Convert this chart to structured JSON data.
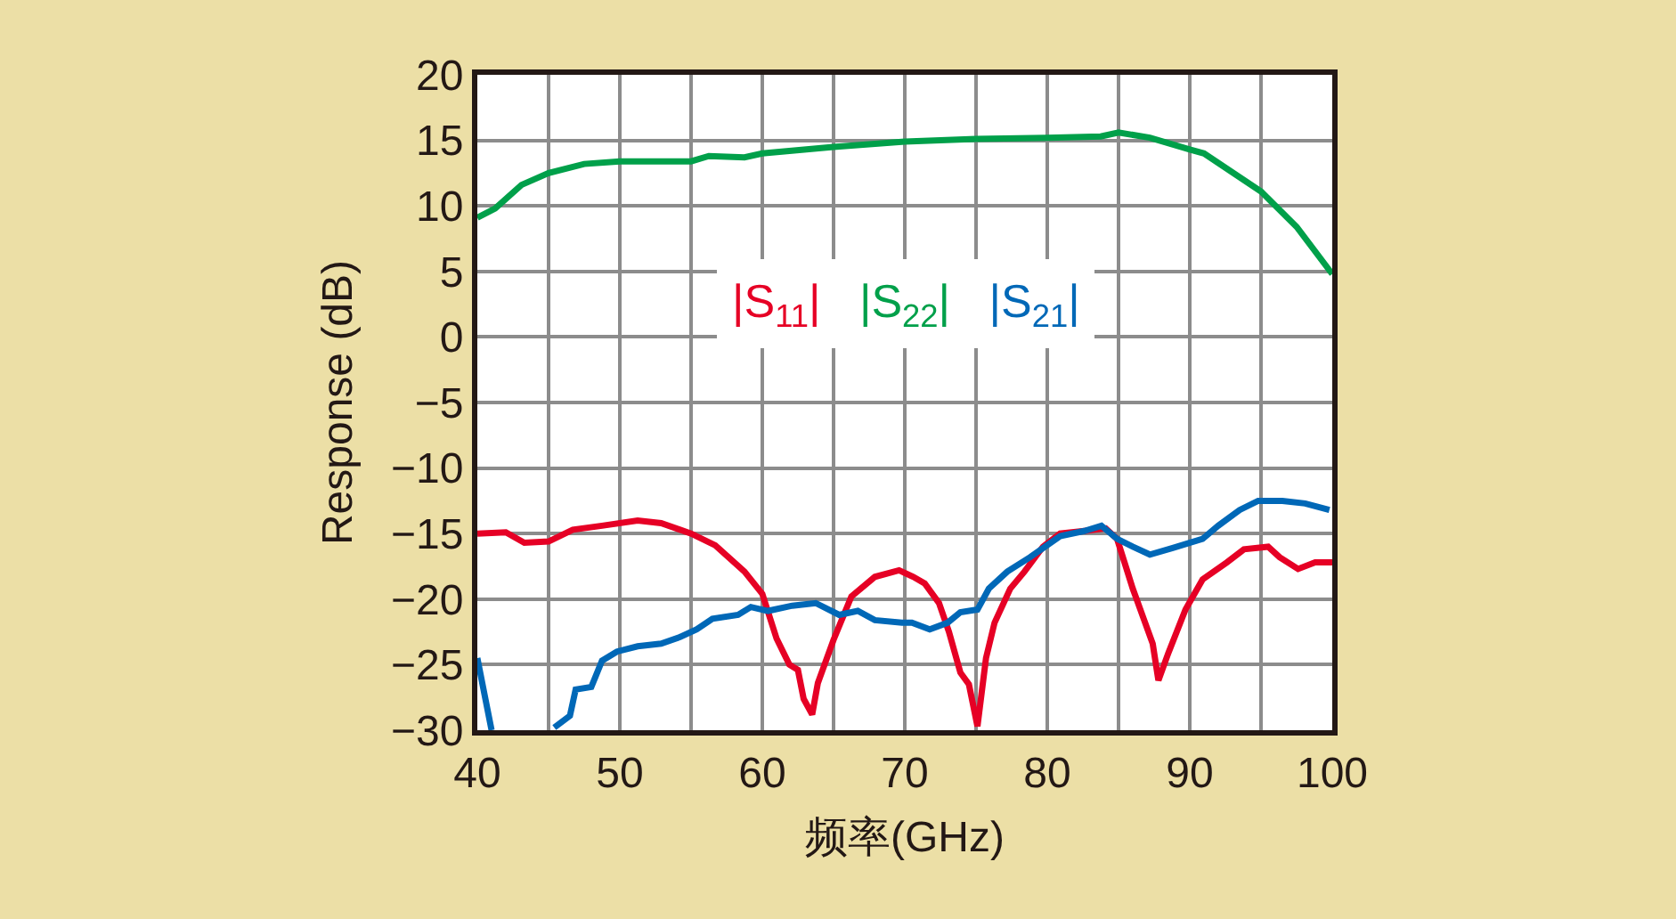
{
  "chart_data": {
    "type": "line",
    "xlabel": "频率(GHz)",
    "ylabel": "Response (dB)",
    "xlim": [
      40,
      100
    ],
    "ylim": [
      -30,
      20
    ],
    "xticks": [
      40,
      {
        "value": 45,
        "label": null
      },
      50,
      {
        "value": 55,
        "label": null
      },
      60,
      {
        "value": 65,
        "label": null
      },
      70,
      {
        "value": 75,
        "label": null
      },
      80,
      {
        "value": 85,
        "label": null
      },
      90,
      {
        "value": 95,
        "label": null
      },
      100
    ],
    "yticks": [
      -30,
      -25,
      -20,
      -15,
      -10,
      -5,
      0,
      5,
      10,
      15,
      20
    ],
    "grid": true,
    "legend": "top",
    "marker": "none",
    "line_style": "solid",
    "series": [
      {
        "name": "|S$_{11}$|",
        "color": "#e60025",
        "x": [
          40,
          42,
          43.3,
          45,
          46.7,
          48.75,
          51.25,
          52.9,
          55,
          56.7,
          58.75,
          60,
          61,
          61.9,
          62.5,
          62.9,
          63.5,
          63.9,
          65,
          66.25,
          67.9,
          69.6,
          70.6,
          71.4,
          72.4,
          73.1,
          73.9,
          74.5,
          75.1,
          75.7,
          76.3,
          77.4,
          78.4,
          79.7,
          80.9,
          82.6,
          84.1,
          84.9,
          86,
          86.8,
          87.4,
          87.8,
          88.5,
          89.7,
          90.9,
          92.6,
          93.8,
          95.5,
          96.3,
          97.6,
          98.8,
          100
        ],
        "values": [
          -15,
          -14.9,
          -15.7,
          -15.6,
          -14.7,
          -14.4,
          -14.0,
          -14.2,
          -15,
          -15.9,
          -17.9,
          -19.6,
          -23,
          -25,
          -25.4,
          -27.6,
          -28.8,
          -26.4,
          -23.1,
          -19.8,
          -18.3,
          -17.8,
          -18.3,
          -18.8,
          -20.3,
          -22.5,
          -25.6,
          -26.5,
          -29.7,
          -24.5,
          -21.8,
          -19.2,
          -17.9,
          -16,
          -15,
          -14.8,
          -14.6,
          -15.4,
          -19.2,
          -21.6,
          -23.4,
          -26.2,
          -24.1,
          -20.8,
          -18.5,
          -17.2,
          -16.2,
          -16,
          -16.8,
          -17.7,
          -17.2,
          -17.2
        ]
      },
      {
        "name": "|S$_{22}$|",
        "color": "#00a04a",
        "x": [
          40,
          41.25,
          43.1,
          45,
          47.5,
          50,
          55,
          56.25,
          58.75,
          60,
          65,
          70,
          75,
          80,
          83.75,
          85,
          87.2,
          90,
          91,
          95,
          97.5,
          100
        ],
        "values": [
          9.1,
          9.8,
          11.6,
          12.5,
          13.2,
          13.4,
          13.4,
          13.8,
          13.7,
          14.0,
          14.5,
          14.9,
          15.1,
          15.2,
          15.3,
          15.6,
          15.2,
          14.3,
          14.0,
          11.1,
          8.4,
          4.8
        ]
      },
      {
        "name": "|S$_{21}$|",
        "color": "#0068b7",
        "x": [
          40,
          40.6,
          41,
          43,
          45.4,
          46.5,
          46.9,
          48,
          48.75,
          49.8,
          51.25,
          52.9,
          54.2,
          55.4,
          56.5,
          58.3,
          59.2,
          60.4,
          62.1,
          63.75,
          65.4,
          66.7,
          67.9,
          69.8,
          70.5,
          71.75,
          73,
          73.9,
          75.1,
          75.9,
          77.2,
          78.8,
          80.9,
          82.6,
          83.8,
          84.9,
          86,
          87.2,
          88.8,
          90.9,
          92,
          93.5,
          94.8,
          96.5,
          98.1,
          99.8
        ],
        "values": [
          -24.5,
          -27.8,
          -30,
          null,
          -29.8,
          -28.9,
          -26.9,
          -26.7,
          -24.7,
          -24,
          -23.6,
          -23.4,
          -22.9,
          -22.3,
          -21.5,
          -21.2,
          -20.6,
          -20.9,
          -20.5,
          -20.3,
          -21.2,
          -20.9,
          -21.6,
          -21.8,
          -21.8,
          -22.3,
          -21.8,
          -21,
          -20.8,
          -19.2,
          -17.9,
          -16.8,
          -15.2,
          -14.8,
          -14.4,
          -15.4,
          -16,
          -16.6,
          -16.1,
          -15.4,
          -14.4,
          -13.2,
          -12.5,
          -12.5,
          -12.7,
          -13.2
        ]
      }
    ]
  }
}
